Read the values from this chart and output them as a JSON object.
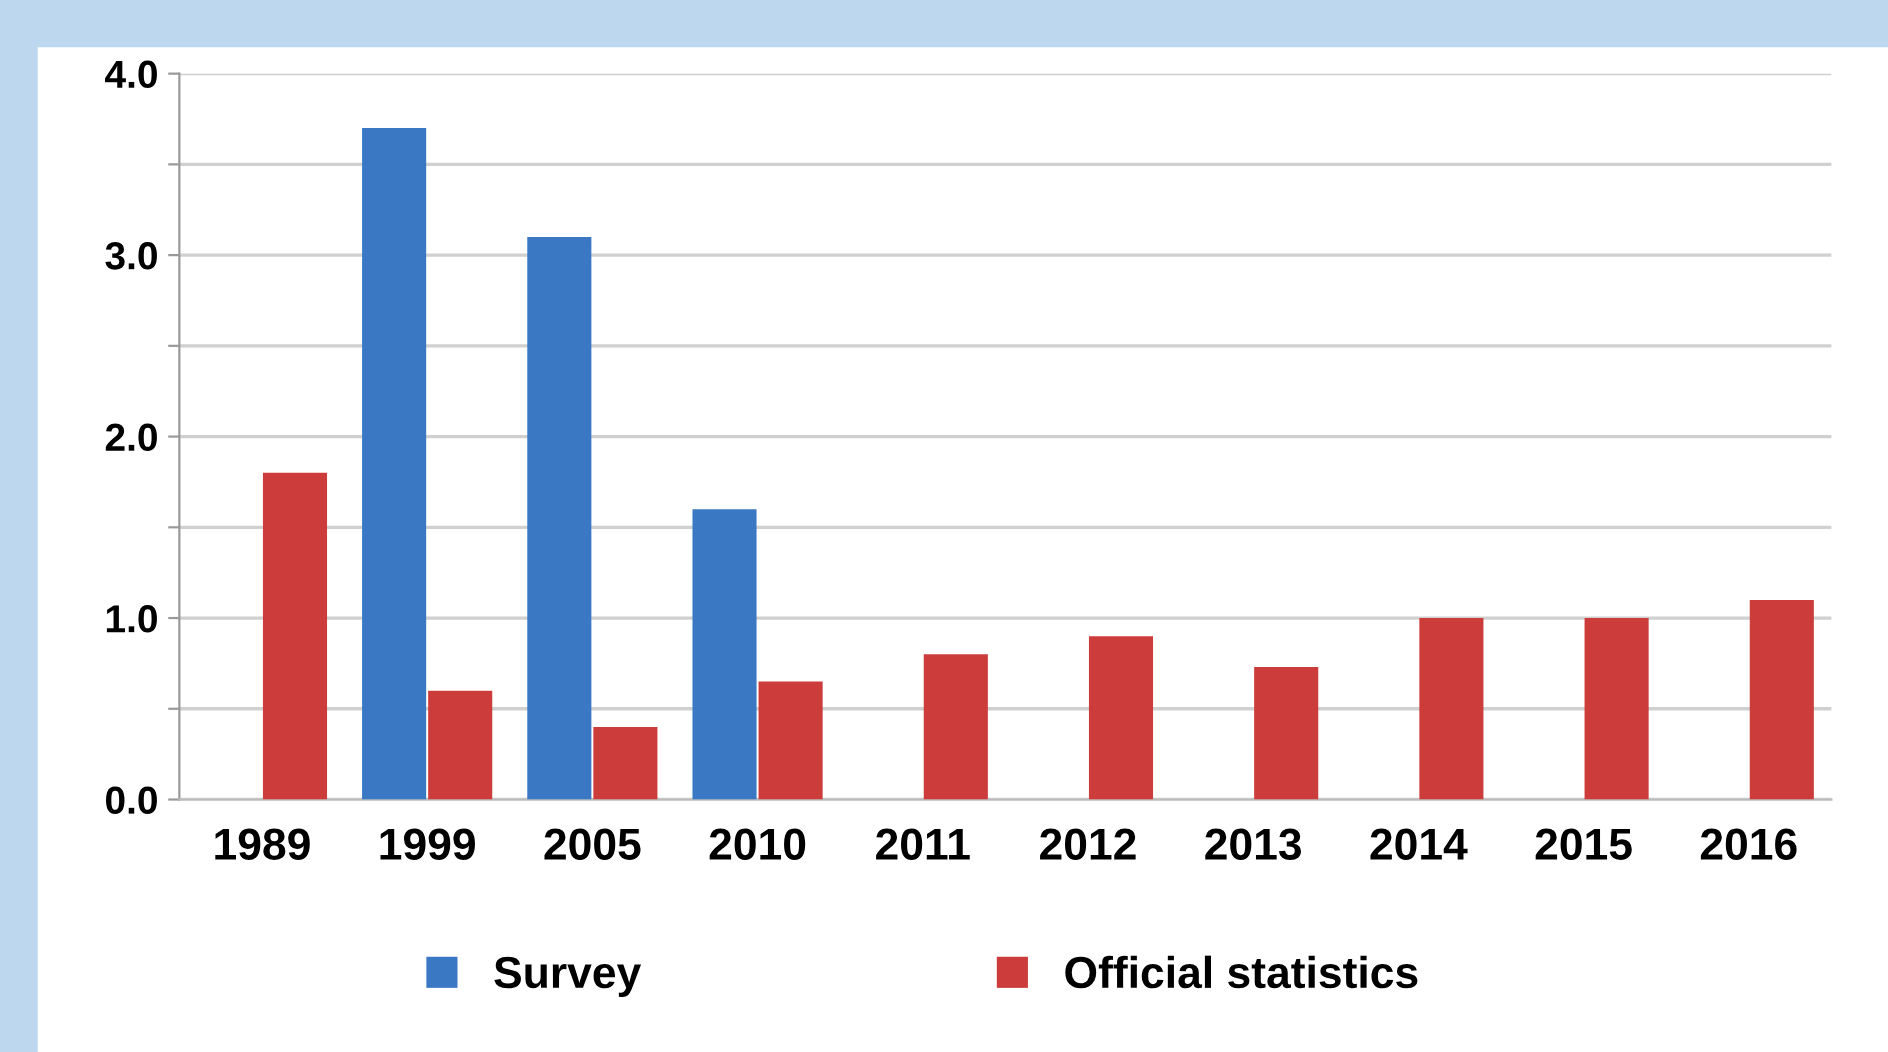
{
  "chart_data": {
    "type": "bar",
    "categories": [
      "1989",
      "1999",
      "2005",
      "2010",
      "2011",
      "2012",
      "2013",
      "2014",
      "2015",
      "2016"
    ],
    "series": [
      {
        "name": "Survey",
        "color": "#3a78c4",
        "values": [
          null,
          3.7,
          3.1,
          1.6,
          null,
          null,
          null,
          null,
          null,
          null
        ]
      },
      {
        "name": "Official statistics",
        "color": "#cc3c3a",
        "values": [
          1.8,
          0.6,
          0.4,
          0.65,
          0.8,
          0.9,
          0.73,
          1.0,
          1.0,
          1.1
        ]
      }
    ],
    "ylim": [
      0,
      4.0
    ],
    "yticks": [
      {
        "value": 0,
        "label": "0.0"
      },
      {
        "value": 0.5,
        "label": null
      },
      {
        "value": 1.0,
        "label": "1.0"
      },
      {
        "value": 1.5,
        "label": null
      },
      {
        "value": 2.0,
        "label": "2.0"
      },
      {
        "value": 2.5,
        "label": null
      },
      {
        "value": 3.0,
        "label": "3.0"
      },
      {
        "value": 3.5,
        "label": null
      },
      {
        "value": 4.0,
        "label": "4.0"
      }
    ],
    "grid": "y",
    "legend": "bottom"
  }
}
